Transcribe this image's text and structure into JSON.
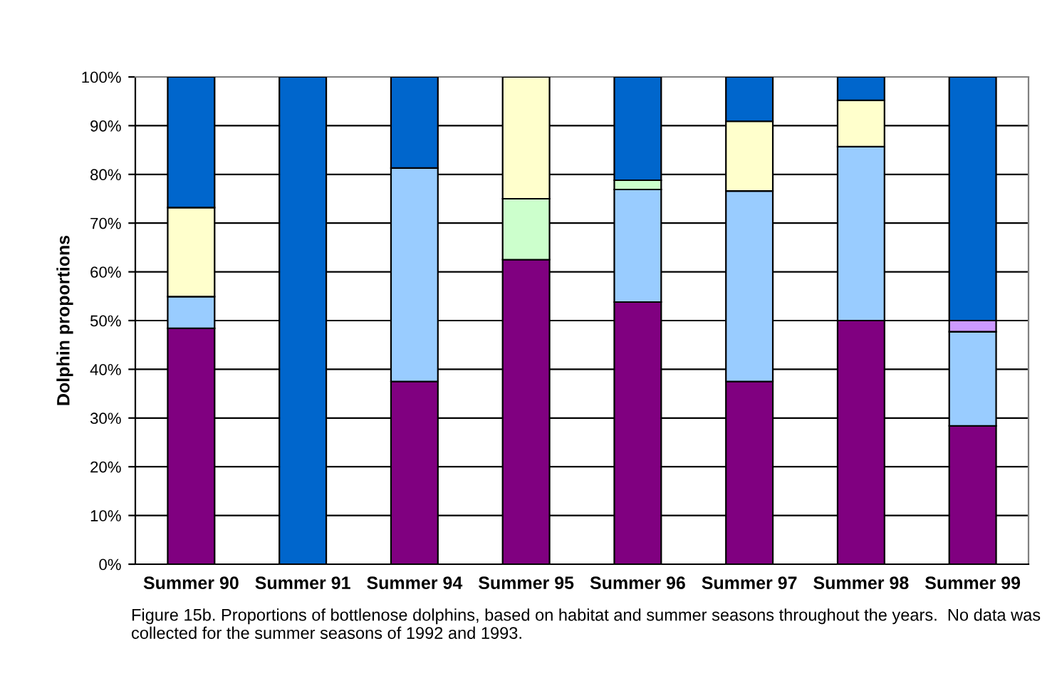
{
  "chart_data": {
    "type": "bar",
    "stacked": true,
    "ylabel": "Dolphin proportions",
    "categories": [
      "Summer 90",
      "Summer 91",
      "Summer 94",
      "Summer 95",
      "Summer 96",
      "Summer 97",
      "Summer 98",
      "Summer 99"
    ],
    "series": [
      {
        "color": "#800080",
        "values": [
          48.4,
          null,
          37.5,
          62.5,
          53.8,
          37.5,
          50,
          28.4
        ]
      },
      {
        "color": "#99ccff",
        "values": [
          6.5,
          null,
          43.8,
          null,
          23.1,
          39.1,
          35.7,
          19.3
        ]
      },
      {
        "color": "#ccffcc",
        "values": [
          null,
          null,
          null,
          12.5,
          1.9,
          null,
          null,
          null
        ]
      },
      {
        "color": "#ffffcc",
        "values": [
          18.3,
          null,
          null,
          25,
          null,
          14.3,
          9.5,
          null
        ]
      },
      {
        "color": "#cc99ff",
        "values": [
          null,
          null,
          null,
          null,
          null,
          null,
          null,
          2.3
        ]
      },
      {
        "color": "#0066cc",
        "values": [
          26.8,
          100,
          18.7,
          null,
          21.2,
          9.1,
          4.8,
          50
        ]
      }
    ],
    "ylim": [
      0,
      100
    ],
    "yticks": [
      {
        "value": 0,
        "label": "0%"
      },
      {
        "value": 10,
        "label": "10%"
      },
      {
        "value": 20,
        "label": "20%"
      },
      {
        "value": 30,
        "label": "30%"
      },
      {
        "value": 40,
        "label": "40%"
      },
      {
        "value": 50,
        "label": "50%"
      },
      {
        "value": 60,
        "label": "60%"
      },
      {
        "value": 70,
        "label": "70%"
      },
      {
        "value": 80,
        "label": "80%"
      },
      {
        "value": 90,
        "label": "90%"
      },
      {
        "value": 100,
        "label": "100%"
      }
    ],
    "grid": "y",
    "annotations": [
      "Figure 15b. Proportions of bottlenose dolphins, based on habitat and summer seasons throughout the years.  No data was collected for the summer seasons of 1992 and 1993."
    ]
  }
}
